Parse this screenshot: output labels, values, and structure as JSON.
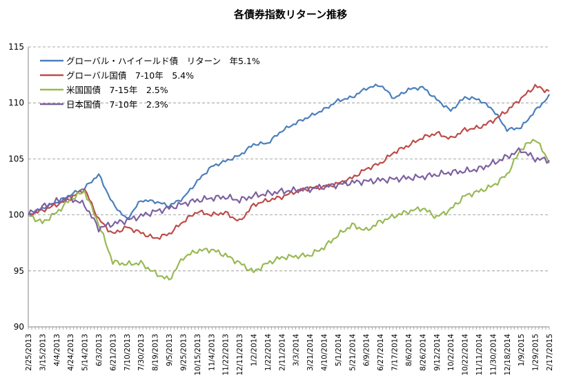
{
  "chart_data": {
    "type": "line",
    "title": "各債券指数リターン推移",
    "xlabel": "",
    "ylabel": "",
    "ylim": [
      90,
      115
    ],
    "yticks": [
      90,
      95,
      100,
      105,
      110,
      115
    ],
    "grid": "horizontal-dashed",
    "legend_position": "top-left",
    "x_tick_labels": [
      "2/25/2013",
      "3/15/2013",
      "4/4/2013",
      "4/24/2013",
      "5/14/2013",
      "6/3/2013",
      "6/21/2013",
      "7/10/2013",
      "7/30/2013",
      "8/19/2013",
      "9/5/2013",
      "9/25/2013",
      "10/15/2013",
      "11/4/2013",
      "11/22/2013",
      "12/11/2013",
      "1/2/2014",
      "1/22/2014",
      "2/11/2014",
      "3/3/2014",
      "3/21/2014",
      "4/10/2014",
      "5/1/2014",
      "5/21/2014",
      "6/9/2014",
      "6/27/2014",
      "7/17/2014",
      "8/6/2014",
      "8/26/2014",
      "9/12/2014",
      "10/2/2014",
      "10/22/2014",
      "11/11/2014",
      "11/30/2014",
      "12/18/2014",
      "1/9/2015",
      "1/29/2015",
      "2/17/2015"
    ],
    "series": [
      {
        "name": "グローバル・ハイイールド債　リターン　年5.1%",
        "color": "#4A7EBB",
        "values": [
          100,
          100.6,
          101.1,
          101.8,
          102.4,
          103.6,
          101,
          99.6,
          101.3,
          101.2,
          100.8,
          101.5,
          103,
          104.3,
          104.8,
          105.3,
          106.3,
          106.4,
          107.5,
          108.2,
          108.8,
          109.4,
          110.2,
          110.5,
          111.3,
          111.6,
          110.4,
          111.2,
          111.4,
          110.3,
          109.3,
          110.5,
          110.3,
          109.4,
          107.6,
          107.8,
          109.3,
          110.6
        ]
      },
      {
        "name": "グローバル国債　7-10年　5.4%",
        "color": "#BE4B48",
        "values": [
          100,
          100.4,
          100.9,
          101.5,
          102.3,
          99.6,
          98.3,
          98.9,
          98.4,
          97.9,
          98.3,
          99.4,
          100.3,
          100,
          100.2,
          99.4,
          100.9,
          101.3,
          101.6,
          102.1,
          102.4,
          102.5,
          102.8,
          103.3,
          104.1,
          104.6,
          105.6,
          106.2,
          106.9,
          107.3,
          106.8,
          107.6,
          107.8,
          108.4,
          109.3,
          110.4,
          111.5,
          111
        ]
      },
      {
        "name": "米国国債　7-15年　2.5%",
        "color": "#98B954",
        "values": [
          100,
          99.3,
          100.2,
          101.4,
          102.1,
          99.2,
          95.8,
          95.6,
          95.7,
          94.8,
          94.2,
          96.2,
          96.8,
          96.9,
          96.4,
          95.7,
          94.9,
          95.7,
          96.2,
          96.3,
          96.4,
          97.1,
          98.2,
          99.1,
          98.6,
          99.4,
          99.9,
          100.3,
          100.6,
          99.8,
          100.5,
          101.7,
          102.1,
          102.6,
          103.6,
          105.9,
          106.8,
          104.8
        ]
      },
      {
        "name": "日本国債　7-10年　2.3%",
        "color": "#7D60A0",
        "values": [
          100,
          100.7,
          101.2,
          101.5,
          100.9,
          98.8,
          99.2,
          99.5,
          99.9,
          100.3,
          100.6,
          101,
          101.3,
          101.5,
          101.6,
          101.3,
          101.7,
          101.9,
          102.1,
          102.2,
          102.3,
          102.5,
          102.7,
          102.9,
          103,
          103.1,
          103.2,
          103.3,
          103.4,
          103.6,
          103.8,
          103.9,
          104.1,
          104.6,
          105.2,
          105.8,
          105,
          104.9
        ]
      }
    ]
  }
}
